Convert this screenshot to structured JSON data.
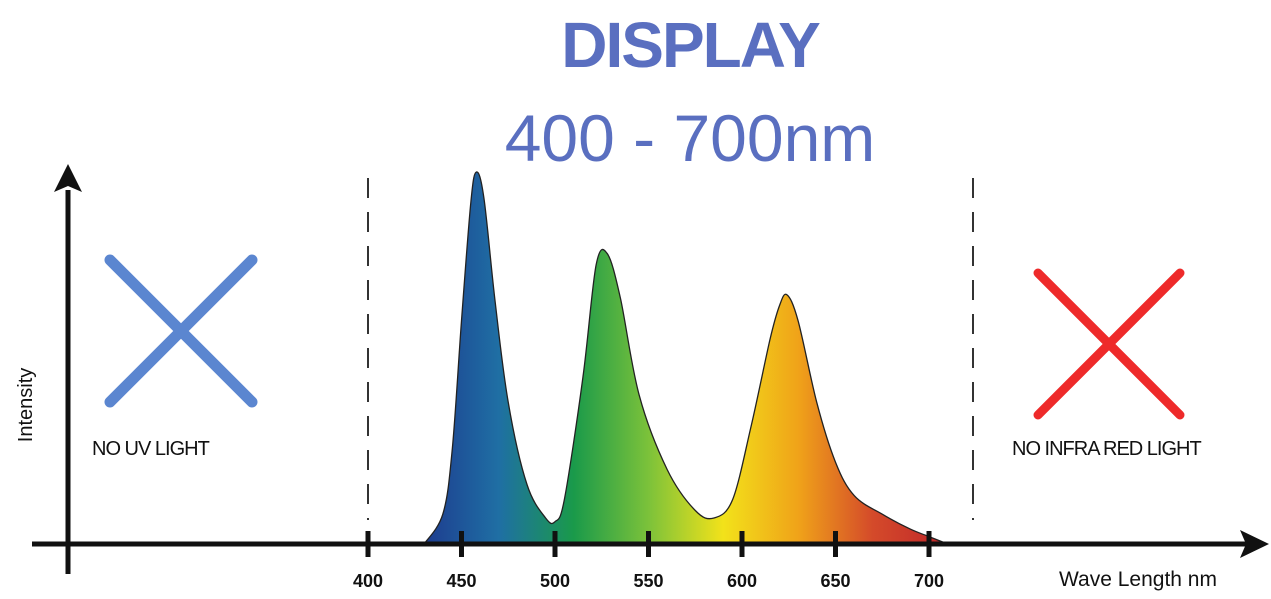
{
  "header": {
    "title": "DISPLAY",
    "subtitle": "400 - 700nm"
  },
  "annotations": {
    "uv": {
      "label": "NO UV LIGHT",
      "icon": "cross-icon",
      "color": "#5b86d0"
    },
    "ir": {
      "label": "NO INFRA RED LIGHT",
      "icon": "cross-icon",
      "color": "#ee2a2a"
    }
  },
  "colors": {
    "accent": "#5a6fc0",
    "axis": "#111111",
    "spectrum": [
      "#1d3c8f",
      "#1f6fa4",
      "#1a9a4a",
      "#7cc23a",
      "#f2e21a",
      "#f0a319",
      "#d44a2a",
      "#c0262a"
    ]
  },
  "chart_data": {
    "type": "area",
    "title": "DISPLAY",
    "subtitle": "400 - 700nm",
    "xlabel": "Wave Length nm",
    "ylabel": "Intensity",
    "xticks": [
      400,
      450,
      500,
      550,
      600,
      650,
      700
    ],
    "xlim": [
      330,
      1010
    ],
    "ylim": [
      0,
      1.05
    ],
    "grid": false,
    "boundaries": [
      400,
      700
    ],
    "series": [
      {
        "x": [
          430,
          440,
          445,
          450,
          455,
          458,
          462,
          468,
          475,
          485,
          495,
          500,
          505,
          515,
          522,
          528,
          535,
          545,
          560,
          575,
          585,
          595,
          605,
          615,
          620,
          624,
          630,
          640,
          650,
          660,
          675,
          690,
          700,
          710
        ],
        "y": [
          0.0,
          0.08,
          0.25,
          0.6,
          0.92,
          1.0,
          0.93,
          0.65,
          0.38,
          0.16,
          0.07,
          0.06,
          0.12,
          0.45,
          0.75,
          0.78,
          0.66,
          0.4,
          0.2,
          0.09,
          0.07,
          0.12,
          0.32,
          0.55,
          0.64,
          0.67,
          0.6,
          0.38,
          0.22,
          0.13,
          0.08,
          0.04,
          0.02,
          0.0
        ]
      }
    ]
  }
}
